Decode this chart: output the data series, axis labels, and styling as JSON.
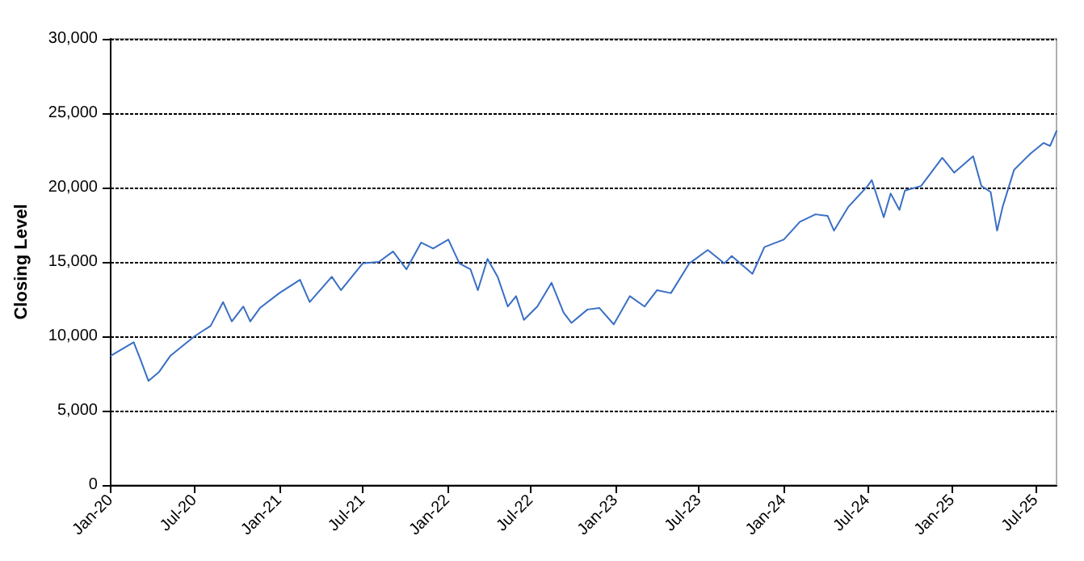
{
  "chart_data": {
    "type": "line",
    "ylabel": "Closing Level",
    "xlim": [
      "2020-01-01",
      "2025-08-15"
    ],
    "xticks": [
      {
        "value": "2020-01-01",
        "label": "Jan-20"
      },
      {
        "value": "2020-07-01",
        "label": "Jul-20"
      },
      {
        "value": "2021-01-01",
        "label": "Jan-21"
      },
      {
        "value": "2021-07-01",
        "label": "Jul-21"
      },
      {
        "value": "2022-01-01",
        "label": "Jan-22"
      },
      {
        "value": "2022-07-01",
        "label": "Jul-22"
      },
      {
        "value": "2023-01-01",
        "label": "Jan-23"
      },
      {
        "value": "2023-07-01",
        "label": "Jul-23"
      },
      {
        "value": "2024-01-01",
        "label": "Jan-24"
      },
      {
        "value": "2024-07-01",
        "label": "Jul-24"
      },
      {
        "value": "2025-01-01",
        "label": "Jan-25"
      },
      {
        "value": "2025-07-01",
        "label": "Jul-25"
      }
    ],
    "ylim": [
      0,
      30000
    ],
    "yticks": [
      {
        "value": 0,
        "label": "0"
      },
      {
        "value": 5000,
        "label": "5,000"
      },
      {
        "value": 10000,
        "label": "10,000"
      },
      {
        "value": 15000,
        "label": "15,000"
      },
      {
        "value": 20000,
        "label": "20,000"
      },
      {
        "value": 25000,
        "label": "25,000"
      },
      {
        "value": 30000,
        "label": "30,000"
      }
    ],
    "grid": "y",
    "marker": "none",
    "line_style": "solid",
    "series": [
      {
        "color": "#3a6fc4",
        "x": [
          "2020-01-02",
          "2020-02-20",
          "2020-03-05",
          "2020-03-23",
          "2020-04-15",
          "2020-05-10",
          "2020-07-01",
          "2020-08-05",
          "2020-09-01",
          "2020-09-20",
          "2020-10-15",
          "2020-10-30",
          "2020-11-20",
          "2021-01-01",
          "2021-02-15",
          "2021-03-08",
          "2021-04-25",
          "2021-05-15",
          "2021-07-01",
          "2021-08-05",
          "2021-09-05",
          "2021-10-04",
          "2021-11-05",
          "2021-12-01",
          "2022-01-03",
          "2022-01-27",
          "2022-02-20",
          "2022-03-08",
          "2022-03-29",
          "2022-04-20",
          "2022-05-12",
          "2022-05-30",
          "2022-06-16",
          "2022-07-15",
          "2022-08-15",
          "2022-09-10",
          "2022-09-27",
          "2022-11-01",
          "2022-11-27",
          "2022-12-28",
          "2023-02-01",
          "2023-03-05",
          "2023-04-01",
          "2023-05-01",
          "2023-06-10",
          "2023-07-20",
          "2023-08-25",
          "2023-09-10",
          "2023-10-25",
          "2023-11-20",
          "2024-01-01",
          "2024-02-05",
          "2024-03-10",
          "2024-04-05",
          "2024-04-19",
          "2024-05-20",
          "2024-07-01",
          "2024-07-10",
          "2024-08-05",
          "2024-08-20",
          "2024-09-08",
          "2024-09-20",
          "2024-10-25",
          "2024-12-10",
          "2025-01-05",
          "2025-02-15",
          "2025-03-05",
          "2025-03-25",
          "2025-04-08",
          "2025-04-20",
          "2025-05-15",
          "2025-06-20",
          "2025-07-18",
          "2025-08-01",
          "2025-08-15"
        ],
        "values": [
          8700,
          9600,
          8500,
          7000,
          7600,
          8700,
          10000,
          10700,
          12300,
          11000,
          12000,
          11000,
          11900,
          12900,
          13800,
          12300,
          14000,
          13100,
          14900,
          15000,
          15700,
          14500,
          16300,
          15900,
          16500,
          14900,
          14500,
          13100,
          15200,
          14000,
          12000,
          12700,
          11100,
          12000,
          13600,
          11600,
          10900,
          11800,
          11900,
          10800,
          12700,
          12000,
          13100,
          12900,
          14900,
          15800,
          14900,
          15400,
          14200,
          16000,
          16500,
          17700,
          18200,
          18100,
          17100,
          18700,
          20100,
          20500,
          18000,
          19600,
          18500,
          19800,
          20100,
          22000,
          21000,
          22100,
          20100,
          19700,
          17100,
          18700,
          21200,
          22300,
          23000,
          22800,
          23800
        ]
      }
    ]
  }
}
